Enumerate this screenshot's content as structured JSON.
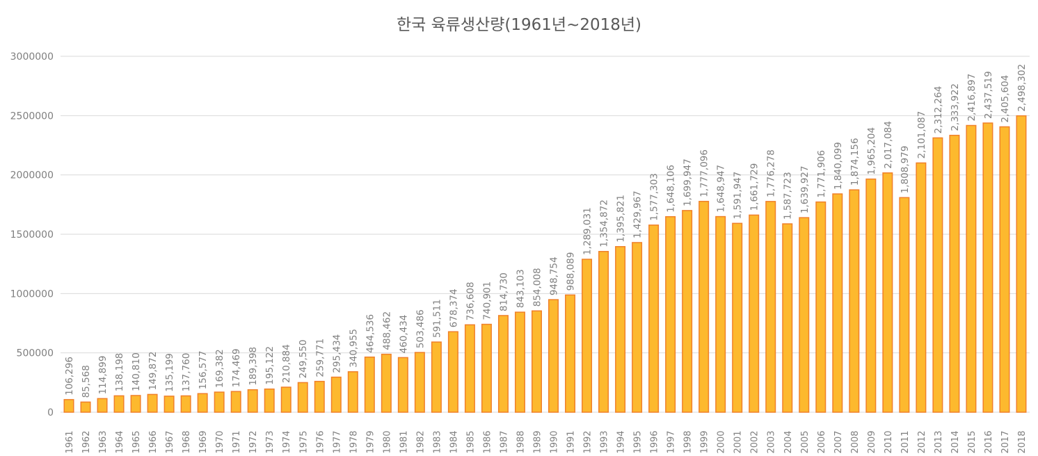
{
  "chart_data": {
    "type": "bar",
    "title": "한국 육류생산량(1961년~2018년)",
    "xlabel": "",
    "ylabel": "",
    "ylim": [
      0,
      3000000
    ],
    "yticks": [
      "0",
      "500000",
      "1000000",
      "1500000",
      "2000000",
      "2500000",
      "3000000"
    ],
    "ytick_values": [
      0,
      500000,
      1000000,
      1500000,
      2000000,
      2500000,
      3000000
    ],
    "grid": true,
    "bar_color": "#FDB92E",
    "bar_edge_color": "#F0802A",
    "categories": [
      "1961",
      "1962",
      "1963",
      "1964",
      "1965",
      "1966",
      "1967",
      "1968",
      "1969",
      "1970",
      "1971",
      "1972",
      "1973",
      "1974",
      "1975",
      "1976",
      "1977",
      "1978",
      "1979",
      "1980",
      "1981",
      "1982",
      "1983",
      "1984",
      "1985",
      "1986",
      "1987",
      "1988",
      "1989",
      "1990",
      "1991",
      "1992",
      "1993",
      "1994",
      "1995",
      "1996",
      "1997",
      "1998",
      "1999",
      "2000",
      "2001",
      "2002",
      "2003",
      "2004",
      "2005",
      "2006",
      "2007",
      "2008",
      "2009",
      "2010",
      "2011",
      "2012",
      "2013",
      "2014",
      "2015",
      "2016",
      "2017",
      "2018"
    ],
    "values": [
      106296,
      85568,
      114899,
      138198,
      140810,
      149872,
      135199,
      137760,
      156577,
      169382,
      174469,
      189398,
      195122,
      210884,
      249550,
      259771,
      295434,
      340955,
      464536,
      488462,
      460434,
      503486,
      591511,
      678374,
      736608,
      740901,
      814730,
      843103,
      854008,
      948754,
      988089,
      1289031,
      1354872,
      1395821,
      1429967,
      1577303,
      1648106,
      1699947,
      1777096,
      1648947,
      1591947,
      1661729,
      1776278,
      1587723,
      1639927,
      1771906,
      1840099,
      1874156,
      1965204,
      2017084,
      1808979,
      2101087,
      2312264,
      2333922,
      2416897,
      2437519,
      2405604,
      2498302
    ],
    "data_labels": [
      "106,296",
      "85,568",
      "114,899",
      "138,198",
      "140,810",
      "149,872",
      "135,199",
      "137,760",
      "156,577",
      "169,382",
      "174,469",
      "189,398",
      "195,122",
      "210,884",
      "249,550",
      "259,771",
      "295,434",
      "340,955",
      "464,536",
      "488,462",
      "460,434",
      "503,486",
      "591,511",
      "678,374",
      "736,608",
      "740,901",
      "814,730",
      "843,103",
      "854,008",
      "948,754",
      "988,089",
      "1,289,031",
      "1,354,872",
      "1,395,821",
      "1,429,967",
      "1,577,303",
      "1,648,106",
      "1,699,947",
      "1,777,096",
      "1,648,947",
      "1,591,947",
      "1,661,729",
      "1,776,278",
      "1,587,723",
      "1,639,927",
      "1,771,906",
      "1,840,099",
      "1,874,156",
      "1,965,204",
      "2,017,084",
      "1,808,979",
      "2,101,087",
      "2,312,264",
      "2,333,922",
      "2,416,897",
      "2,437,519",
      "2,405,604",
      "2,498,302"
    ]
  }
}
